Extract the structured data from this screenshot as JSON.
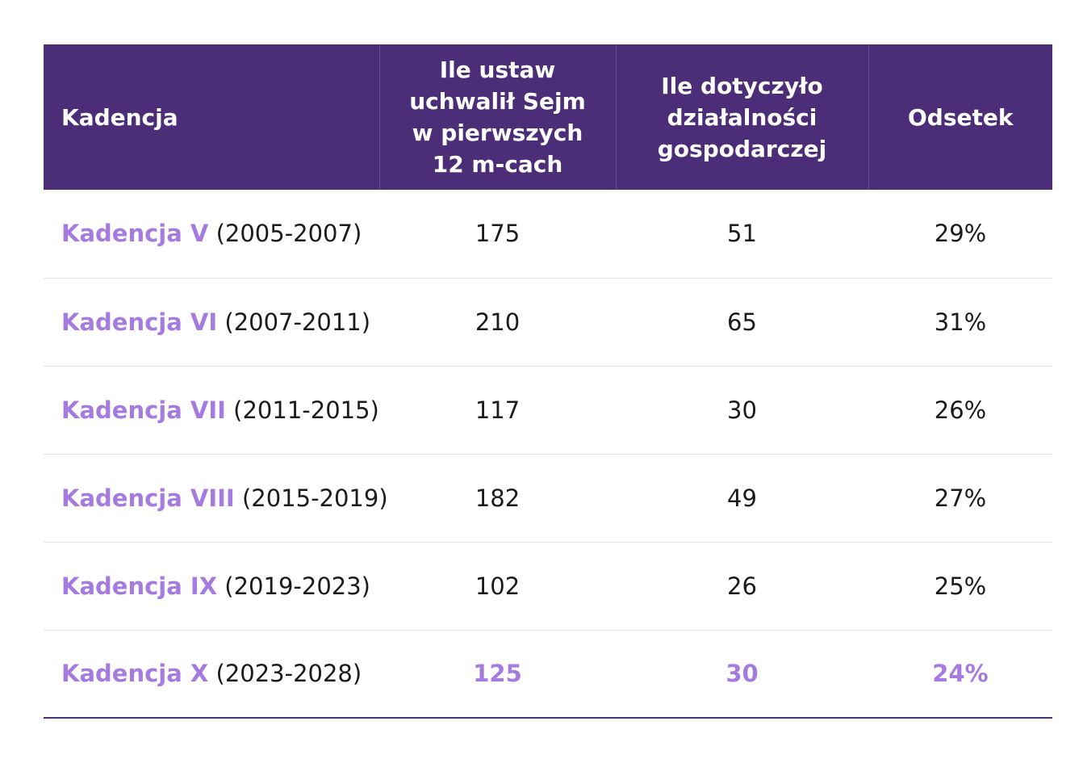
{
  "colors": {
    "header_bg": "#4b2e77",
    "accent": "#a57be0",
    "text": "#1b1b1b",
    "row_divider": "#e6e3ea"
  },
  "chart_data": {
    "type": "table",
    "columns": [
      {
        "lines": [
          "Kadencja"
        ]
      },
      {
        "lines": [
          "Ile ustaw",
          "uchwalił Sejm",
          "w pierwszych",
          "12 m-cach"
        ]
      },
      {
        "lines": [
          "Ile dotyczyło",
          "działalności",
          "gospodarczej"
        ]
      },
      {
        "lines": [
          "Odsetek"
        ]
      }
    ],
    "rows": [
      {
        "name": "Kadencja V",
        "years": "(2005-2007)",
        "laws": "175",
        "business": "51",
        "share": "29%",
        "highlight": false
      },
      {
        "name": "Kadencja VI",
        "years": "(2007-2011)",
        "laws": "210",
        "business": "65",
        "share": "31%",
        "highlight": false
      },
      {
        "name": "Kadencja VII",
        "years": "(2011-2015)",
        "laws": "117",
        "business": "30",
        "share": "26%",
        "highlight": false
      },
      {
        "name": "Kadencja VIII",
        "years": "(2015-2019)",
        "laws": "182",
        "business": "49",
        "share": "27%",
        "highlight": false
      },
      {
        "name": "Kadencja IX",
        "years": "(2019-2023)",
        "laws": "102",
        "business": "26",
        "share": "25%",
        "highlight": false
      },
      {
        "name": "Kadencja X",
        "years": "(2023-2028)",
        "laws": "125",
        "business": "30",
        "share": "24%",
        "highlight": true
      }
    ]
  }
}
